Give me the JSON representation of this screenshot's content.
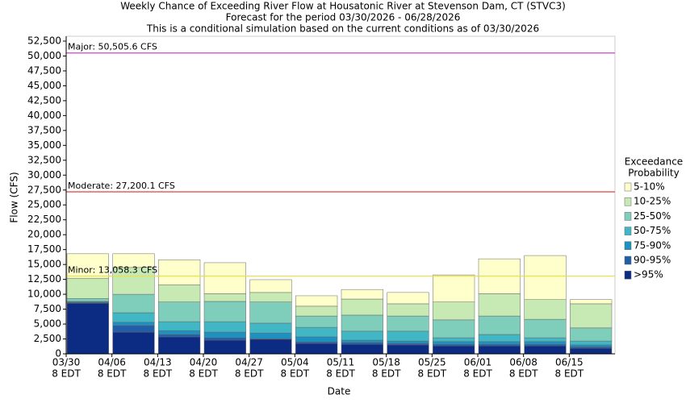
{
  "chart_data": {
    "type": "stacked_bar",
    "title": [
      "Weekly Chance of Exceeding River Flow at Housatonic River at Stevenson Dam, CT (STVC3)",
      "Forecast for the period 03/30/2026 - 06/28/2026",
      "This is a conditional simulation based on the current conditions as of 03/30/2026"
    ],
    "y_label": "Flow (CFS)",
    "x_label": "Date",
    "legend_title": [
      "Exceedance",
      "Probability"
    ],
    "categories": [
      [
        "03/30",
        "8 EDT"
      ],
      [
        "04/06",
        "8 EDT"
      ],
      [
        "04/13",
        "8 EDT"
      ],
      [
        "04/20",
        "8 EDT"
      ],
      [
        "04/27",
        "8 EDT"
      ],
      [
        "05/04",
        "8 EDT"
      ],
      [
        "05/11",
        "8 EDT"
      ],
      [
        "05/18",
        "8 EDT"
      ],
      [
        "05/25",
        "8 EDT"
      ],
      [
        "06/01",
        "8 EDT"
      ],
      [
        "06/08",
        "8 EDT"
      ],
      [
        "06/15",
        "8 EDT"
      ]
    ],
    "series": [
      {
        "name": ">95%",
        "color": "#0c2c84",
        "values": [
          8500,
          3650,
          2850,
          2300,
          2450,
          1750,
          1600,
          1500,
          1350,
          1350,
          1350,
          950
        ]
      },
      {
        "name": "90-95%",
        "color": "#225ea8",
        "values": [
          100,
          1100,
          400,
          400,
          100,
          250,
          300,
          250,
          250,
          250,
          250,
          250
        ]
      },
      {
        "name": "75-90%",
        "color": "#1d91c0",
        "values": [
          100,
          550,
          650,
          950,
          950,
          850,
          400,
          400,
          450,
          450,
          450,
          300
        ]
      },
      {
        "name": "50-75%",
        "color": "#41b6c4",
        "values": [
          100,
          1600,
          1500,
          1750,
          1650,
          1600,
          1500,
          1650,
          650,
          1200,
          650,
          650
        ]
      },
      {
        "name": "25-50%",
        "color": "#7fcdbb",
        "values": [
          500,
          3100,
          3300,
          3400,
          3550,
          1900,
          2700,
          2550,
          3000,
          3100,
          3100,
          2200
        ]
      },
      {
        "name": "10-25%",
        "color": "#c7e9b4",
        "values": [
          3400,
          4500,
          2900,
          1300,
          1600,
          1650,
          2700,
          2050,
          3000,
          3750,
          3300,
          4050
        ]
      },
      {
        "name": "5-10%",
        "color": "#ffffcc",
        "values": [
          4100,
          2300,
          4200,
          5200,
          2150,
          1750,
          1600,
          1900,
          4550,
          5850,
          7400,
          700
        ]
      }
    ],
    "thresholds": [
      {
        "label": "Major: 50,505.6 CFS",
        "value": 50505.6,
        "color": "#cc44cc"
      },
      {
        "label": "Moderate: 27,200.1 CFS",
        "value": 27200.1,
        "color": "#e04040"
      },
      {
        "label": "Minor: 13,058.3 CFS",
        "value": 13058.3,
        "color": "#e8e050"
      }
    ],
    "ylim": [
      0,
      52500
    ],
    "yticks": [
      0,
      {
        "value": 2500,
        "label": "2,500"
      },
      {
        "value": 5000,
        "label": "5,000"
      },
      {
        "value": 7500,
        "label": "7,500"
      },
      {
        "value": 10000,
        "label": "10,000"
      },
      {
        "value": 12500,
        "label": "12,500"
      },
      {
        "value": 15000,
        "label": "15,000"
      },
      {
        "value": 17500,
        "label": "17,500"
      },
      {
        "value": 20000,
        "label": "20,000"
      },
      {
        "value": 22500,
        "label": "22,500"
      },
      {
        "value": 25000,
        "label": "25,000"
      },
      {
        "value": 27500,
        "label": "27,500"
      },
      {
        "value": 30000,
        "label": "30,000"
      },
      {
        "value": 32500,
        "label": "32,500"
      },
      {
        "value": 35000,
        "label": "35,000"
      },
      {
        "value": 37500,
        "label": "37,500"
      },
      {
        "value": 40000,
        "label": "40,000"
      },
      {
        "value": 42500,
        "label": "42,500"
      },
      {
        "value": 45000,
        "label": "45,000"
      },
      {
        "value": 47500,
        "label": "47,500"
      },
      {
        "value": 50000,
        "label": "50,000"
      },
      {
        "value": 52500,
        "label": "52,500"
      }
    ]
  }
}
